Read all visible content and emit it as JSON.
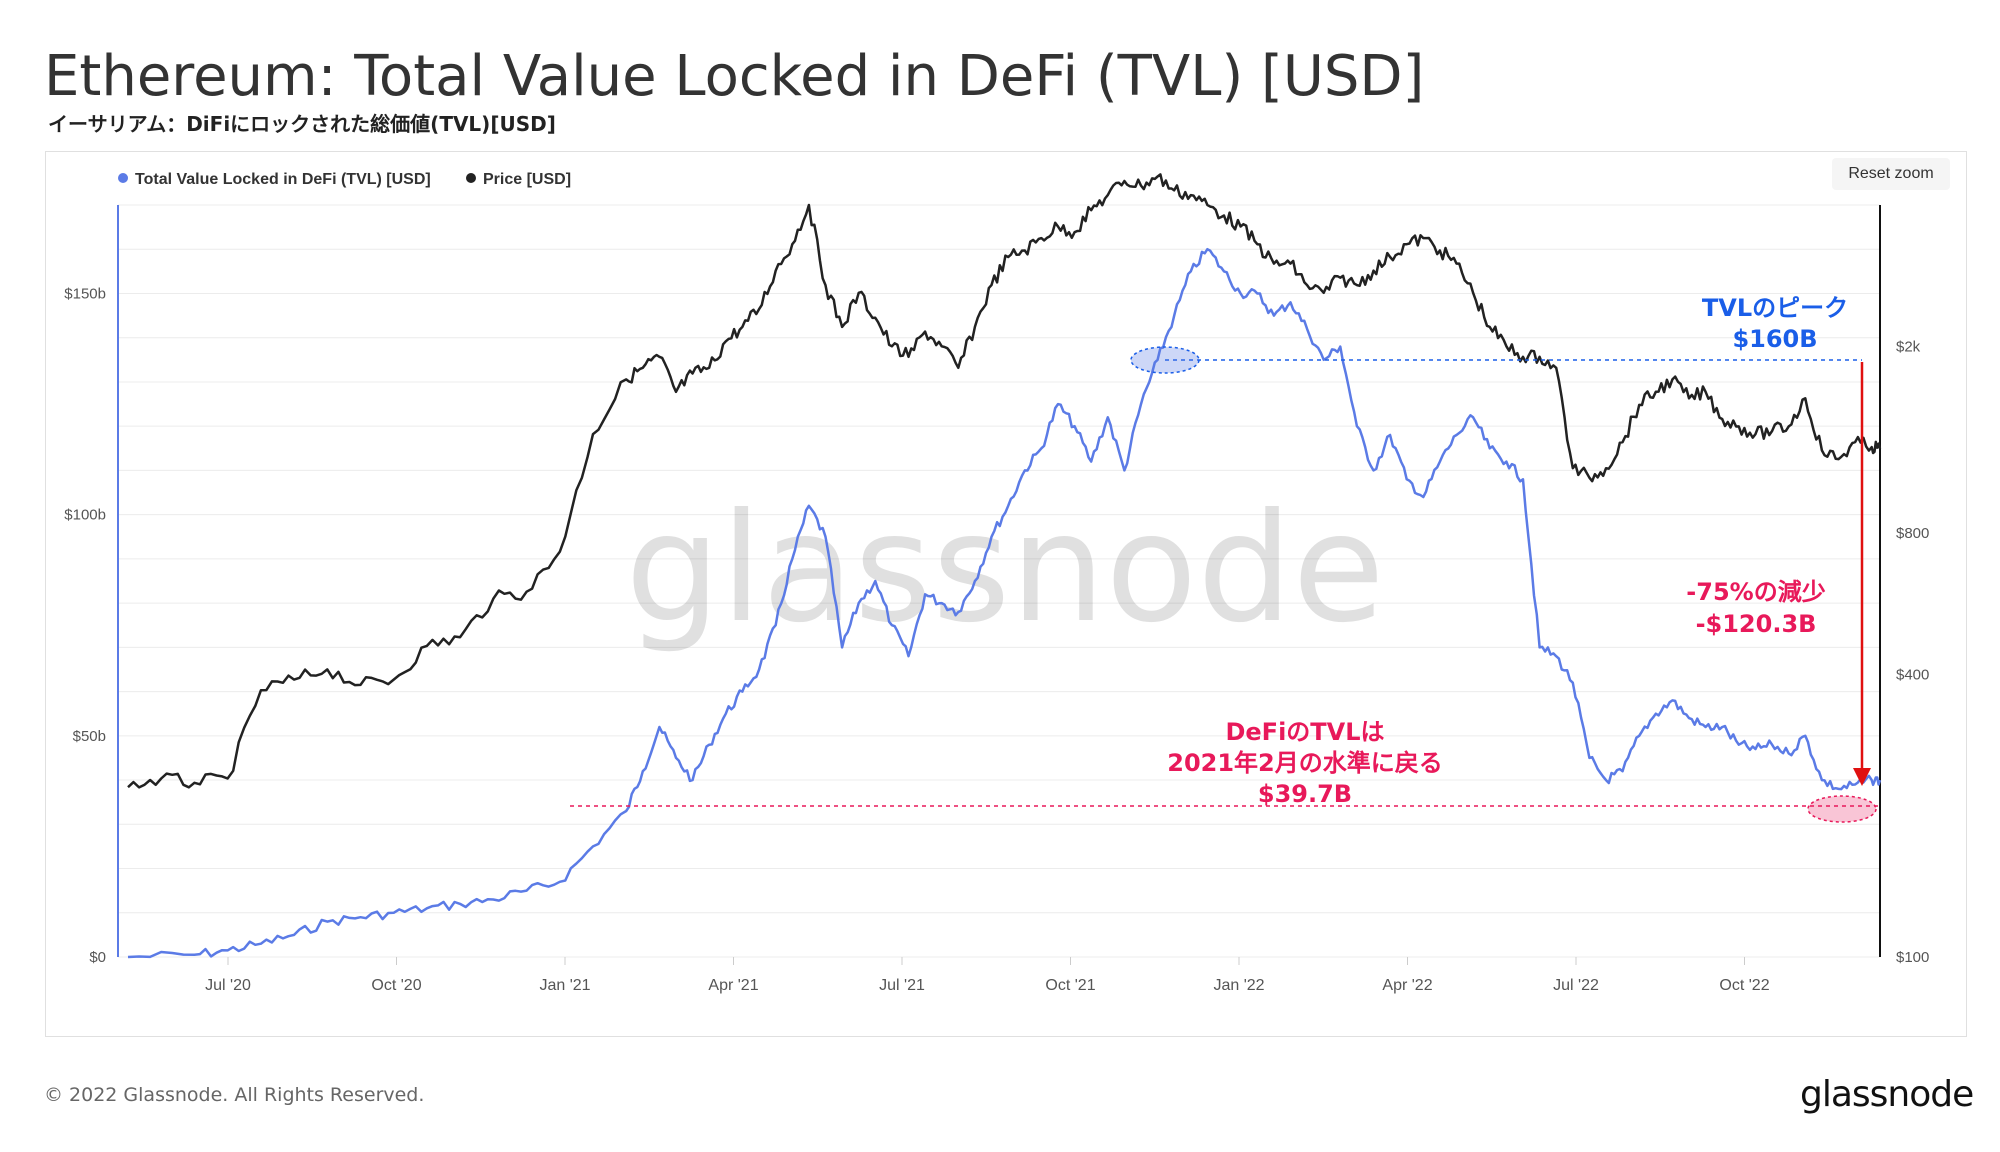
{
  "title": "Ethereum: Total Value Locked in DeFi (TVL) [USD]",
  "subtitle": "イーサリアム：DiFiにロックされた総価値(TVL)[USD]",
  "reset_zoom": "Reset zoom",
  "watermark": "glassnode",
  "footer": "© 2022 Glassnode. All Rights Reserved.",
  "brand": "glassnode",
  "colors": {
    "tvl": "#5b7be6",
    "price": "#222222",
    "peak": "#1a5ee8",
    "drop": "#e8195a",
    "arrow": "#e01010"
  },
  "chart_data": {
    "type": "line",
    "x_ticks": [
      "Jul '20",
      "Oct '20",
      "Jan '21",
      "Apr '21",
      "Jul '21",
      "Oct '21",
      "Jan '22",
      "Apr '22",
      "Jul '22",
      "Oct '22"
    ],
    "y_left": {
      "ticks": [
        "$0",
        "$50b",
        "$100b",
        "$150b"
      ],
      "range": [
        0,
        170
      ]
    },
    "y_right": {
      "scale": "log",
      "ticks": [
        "$100",
        "$400",
        "$800",
        "$2k"
      ],
      "range": [
        100,
        4000
      ]
    },
    "legend": [
      {
        "label": "Total Value Locked in DeFi (TVL) [USD]",
        "color": "#5b7be6"
      },
      {
        "label": "Price [USD]",
        "color": "#222222"
      }
    ],
    "series": [
      {
        "name": "Total Value Locked in DeFi (TVL) [USD]",
        "unit": "billion USD",
        "axis": "left",
        "points": [
          [
            0,
            0
          ],
          [
            8,
            0.5
          ],
          [
            12,
            1.5
          ],
          [
            16,
            3
          ],
          [
            20,
            5
          ],
          [
            24,
            8
          ],
          [
            28,
            9
          ],
          [
            32,
            10
          ],
          [
            36,
            11
          ],
          [
            40,
            12
          ],
          [
            44,
            13
          ],
          [
            48,
            15
          ],
          [
            52,
            17
          ],
          [
            56,
            25
          ],
          [
            60,
            33
          ],
          [
            62,
            42
          ],
          [
            64,
            52
          ],
          [
            66,
            45
          ],
          [
            68,
            40
          ],
          [
            70,
            48
          ],
          [
            72,
            55
          ],
          [
            74,
            60
          ],
          [
            76,
            65
          ],
          [
            78,
            75
          ],
          [
            80,
            90
          ],
          [
            82,
            102
          ],
          [
            84,
            95
          ],
          [
            86,
            70
          ],
          [
            88,
            80
          ],
          [
            90,
            85
          ],
          [
            92,
            75
          ],
          [
            94,
            68
          ],
          [
            96,
            82
          ],
          [
            98,
            80
          ],
          [
            100,
            78
          ],
          [
            102,
            85
          ],
          [
            104,
            95
          ],
          [
            106,
            102
          ],
          [
            108,
            110
          ],
          [
            110,
            115
          ],
          [
            112,
            125
          ],
          [
            114,
            120
          ],
          [
            116,
            112
          ],
          [
            118,
            122
          ],
          [
            120,
            110
          ],
          [
            122,
            125
          ],
          [
            124,
            135
          ],
          [
            126,
            145
          ],
          [
            128,
            155
          ],
          [
            130,
            160
          ],
          [
            132,
            155
          ],
          [
            134,
            150
          ],
          [
            136,
            150
          ],
          [
            138,
            145
          ],
          [
            140,
            148
          ],
          [
            142,
            142
          ],
          [
            144,
            135
          ],
          [
            146,
            138
          ],
          [
            148,
            120
          ],
          [
            150,
            110
          ],
          [
            152,
            118
          ],
          [
            154,
            108
          ],
          [
            156,
            104
          ],
          [
            158,
            112
          ],
          [
            160,
            118
          ],
          [
            162,
            122
          ],
          [
            164,
            115
          ],
          [
            166,
            112
          ],
          [
            168,
            108
          ],
          [
            170,
            70
          ],
          [
            172,
            68
          ],
          [
            174,
            62
          ],
          [
            176,
            45
          ],
          [
            178,
            40
          ],
          [
            180,
            42
          ],
          [
            182,
            50
          ],
          [
            184,
            55
          ],
          [
            186,
            58
          ],
          [
            188,
            54
          ],
          [
            190,
            52
          ],
          [
            192,
            52
          ],
          [
            194,
            48
          ],
          [
            196,
            47
          ],
          [
            198,
            48
          ],
          [
            200,
            46
          ],
          [
            202,
            50
          ],
          [
            204,
            40
          ],
          [
            206,
            38
          ],
          [
            208,
            39
          ],
          [
            210,
            40
          ],
          [
            211,
            40
          ]
        ]
      },
      {
        "name": "Price [USD]",
        "unit": "USD",
        "axis": "right",
        "points": [
          [
            0,
            230
          ],
          [
            4,
            240
          ],
          [
            8,
            235
          ],
          [
            12,
            240
          ],
          [
            16,
            370
          ],
          [
            20,
            390
          ],
          [
            24,
            410
          ],
          [
            28,
            380
          ],
          [
            32,
            390
          ],
          [
            36,
            460
          ],
          [
            40,
            480
          ],
          [
            44,
            580
          ],
          [
            48,
            600
          ],
          [
            52,
            730
          ],
          [
            56,
            1300
          ],
          [
            60,
            1700
          ],
          [
            62,
            1800
          ],
          [
            64,
            1900
          ],
          [
            66,
            1600
          ],
          [
            68,
            1750
          ],
          [
            70,
            1800
          ],
          [
            72,
            2050
          ],
          [
            74,
            2200
          ],
          [
            76,
            2400
          ],
          [
            78,
            2900
          ],
          [
            80,
            3300
          ],
          [
            82,
            4000
          ],
          [
            84,
            2700
          ],
          [
            86,
            2200
          ],
          [
            88,
            2600
          ],
          [
            90,
            2300
          ],
          [
            92,
            2000
          ],
          [
            94,
            1900
          ],
          [
            96,
            2150
          ],
          [
            98,
            2000
          ],
          [
            100,
            1800
          ],
          [
            102,
            2200
          ],
          [
            104,
            2700
          ],
          [
            106,
            3100
          ],
          [
            108,
            3200
          ],
          [
            110,
            3400
          ],
          [
            112,
            3600
          ],
          [
            114,
            3500
          ],
          [
            116,
            3900
          ],
          [
            118,
            4200
          ],
          [
            120,
            4500
          ],
          [
            122,
            4400
          ],
          [
            124,
            4600
          ],
          [
            126,
            4300
          ],
          [
            128,
            4200
          ],
          [
            130,
            4000
          ],
          [
            132,
            3800
          ],
          [
            134,
            3600
          ],
          [
            136,
            3300
          ],
          [
            138,
            3000
          ],
          [
            140,
            3000
          ],
          [
            142,
            2700
          ],
          [
            144,
            2600
          ],
          [
            146,
            2800
          ],
          [
            148,
            2700
          ],
          [
            150,
            2900
          ],
          [
            152,
            3100
          ],
          [
            154,
            3300
          ],
          [
            156,
            3400
          ],
          [
            158,
            3200
          ],
          [
            160,
            3000
          ],
          [
            162,
            2600
          ],
          [
            164,
            2200
          ],
          [
            166,
            2000
          ],
          [
            168,
            1900
          ],
          [
            170,
            1900
          ],
          [
            172,
            1800
          ],
          [
            174,
            1100
          ],
          [
            176,
            1050
          ],
          [
            178,
            1100
          ],
          [
            180,
            1250
          ],
          [
            182,
            1500
          ],
          [
            184,
            1600
          ],
          [
            186,
            1700
          ],
          [
            188,
            1550
          ],
          [
            190,
            1600
          ],
          [
            192,
            1400
          ],
          [
            194,
            1350
          ],
          [
            196,
            1300
          ],
          [
            198,
            1320
          ],
          [
            200,
            1350
          ],
          [
            202,
            1550
          ],
          [
            204,
            1200
          ],
          [
            206,
            1150
          ],
          [
            208,
            1250
          ],
          [
            210,
            1220
          ],
          [
            211,
            1210
          ]
        ]
      }
    ],
    "annotations": [
      {
        "label": "TVLのピーク",
        "value": "$160B"
      },
      {
        "label": "-75%の減少",
        "value": "-$120.3B"
      },
      {
        "label": "DeFiのTVLは",
        "label2": "2021年2月の水準に戻る",
        "value": "$39.7B"
      }
    ]
  }
}
